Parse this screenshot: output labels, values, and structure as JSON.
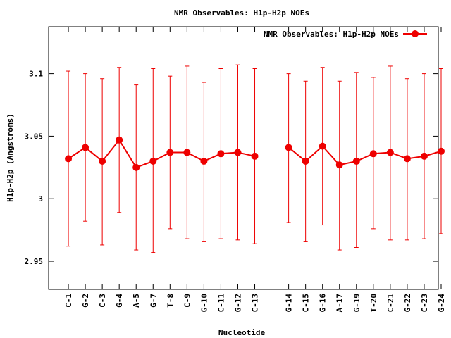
{
  "chart_data": {
    "type": "line",
    "title": "NMR Observables: H1p-H2p NOEs",
    "xlabel": "Nucleotide",
    "ylabel": "H1p-H2p (Angstroms)",
    "ylim": [
      2.9275,
      3.1375
    ],
    "yticks": [
      2.95,
      3,
      3.05,
      3.1
    ],
    "ytick_labels": [
      "2.95",
      "3",
      "3.05",
      "3.1"
    ],
    "grid": false,
    "legend_position": "top-right",
    "error_bars": true,
    "colors": {
      "series": "#ee0000",
      "axes": "#000000",
      "background": "#ffffff"
    },
    "x_positions": [
      1,
      2,
      3,
      4,
      5,
      6,
      7,
      8,
      9,
      10,
      11,
      12,
      14,
      15,
      16,
      17,
      18,
      19,
      20,
      21,
      22,
      23
    ],
    "xlim": [
      0,
      23
    ],
    "categories": [
      "C-1",
      "G-2",
      "C-3",
      "G-4",
      "A-5",
      "G-7",
      "T-8",
      "C-9",
      "G-10",
      "C-11",
      "G-12",
      "C-13",
      "G-14",
      "C-15",
      "G-16",
      "A-17",
      "G-19",
      "T-20",
      "C-21",
      "G-22",
      "C-23",
      "G-24"
    ],
    "series": [
      {
        "name": "NMR Observables: H1p-H2p NOEs",
        "values": [
          3.032,
          3.041,
          3.03,
          3.047,
          3.025,
          3.03,
          3.037,
          3.037,
          3.03,
          3.036,
          3.037,
          3.034,
          3.041,
          3.03,
          3.042,
          3.027,
          3.03,
          3.036,
          3.037,
          3.032,
          3.034,
          3.038
        ],
        "err_low": [
          2.962,
          2.982,
          2.963,
          2.989,
          2.959,
          2.957,
          2.976,
          2.968,
          2.966,
          2.968,
          2.967,
          2.964,
          2.981,
          2.966,
          2.979,
          2.959,
          2.961,
          2.976,
          2.967,
          2.967,
          2.968,
          2.972
        ],
        "err_high": [
          3.102,
          3.1,
          3.096,
          3.105,
          3.091,
          3.104,
          3.098,
          3.106,
          3.093,
          3.104,
          3.107,
          3.104,
          3.1,
          3.094,
          3.105,
          3.094,
          3.101,
          3.097,
          3.106,
          3.096,
          3.1,
          3.104
        ]
      }
    ]
  }
}
